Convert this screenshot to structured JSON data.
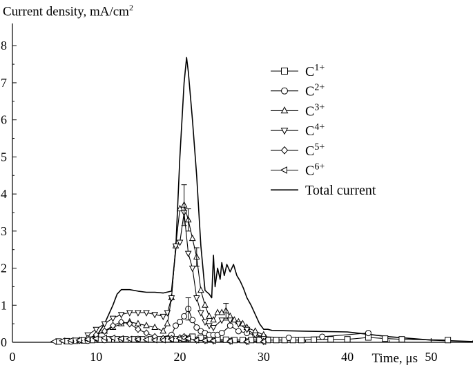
{
  "chart_data": {
    "type": "line",
    "ylabel_main": "Current density, mA/cm",
    "ylabel_sup": "2",
    "xlabel": "Time, μs",
    "xlim": [
      0,
      55
    ],
    "ylim": [
      0,
      8.6
    ],
    "x_ticks": [
      0,
      10,
      20,
      30,
      40,
      50
    ],
    "y_ticks": [
      0,
      1,
      2,
      3,
      4,
      5,
      6,
      7,
      8
    ],
    "legend_position": "top-right",
    "series": [
      {
        "name": "C1+",
        "base": "C",
        "sup": "1+",
        "marker": "square",
        "x": [
          5.5,
          6.5,
          7.5,
          8.5,
          9.5,
          10.5,
          11.5,
          12.5,
          13.5,
          14.5,
          15.5,
          16.5,
          17.5,
          18.5,
          19.5,
          20.5,
          21.5,
          22.5,
          23.5,
          24.5,
          25.5,
          26.5,
          27.5,
          28.5,
          29.5,
          30.5,
          31.5,
          32.5,
          33.5,
          34.5,
          36,
          38,
          40,
          42.5,
          44.5,
          46.5,
          52
        ],
        "values": [
          0.02,
          0.03,
          0.04,
          0.05,
          0.06,
          0.07,
          0.08,
          0.08,
          0.08,
          0.08,
          0.08,
          0.08,
          0.08,
          0.08,
          0.08,
          0.1,
          0.15,
          0.12,
          0.1,
          0.08,
          0.07,
          0.06,
          0.06,
          0.06,
          0.06,
          0.06,
          0.06,
          0.06,
          0.06,
          0.06,
          0.07,
          0.08,
          0.08,
          0.13,
          0.1,
          0.08,
          0.06
        ]
      },
      {
        "name": "C2+",
        "base": "C",
        "sup": "2+",
        "marker": "circle",
        "x": [
          7,
          9,
          11,
          13,
          15,
          17,
          19,
          19.5,
          20,
          20.5,
          21,
          21.5,
          22,
          22.5,
          23,
          23.5,
          24,
          24.5,
          25,
          26,
          27,
          28,
          29,
          30,
          33,
          37,
          42.5
        ],
        "values": [
          0.02,
          0.04,
          0.06,
          0.08,
          0.09,
          0.1,
          0.2,
          0.45,
          0.55,
          0.7,
          0.9,
          0.6,
          0.4,
          0.3,
          0.25,
          0.2,
          0.2,
          0.2,
          0.25,
          0.45,
          0.3,
          0.25,
          0.2,
          0.15,
          0.12,
          0.15,
          0.25
        ]
      },
      {
        "name": "C3+",
        "base": "C",
        "sup": "3+",
        "marker": "triangle-up",
        "x": [
          8,
          9,
          10,
          11,
          12,
          13,
          14,
          15,
          16,
          17,
          18,
          18.5,
          19,
          19.5,
          20,
          20.5,
          21,
          21.5,
          22,
          22.5,
          23,
          23.5,
          24,
          24.5,
          25,
          25.5,
          26,
          26.5,
          27,
          27.5,
          28,
          29,
          30
        ],
        "values": [
          0.05,
          0.1,
          0.2,
          0.3,
          0.4,
          0.5,
          0.55,
          0.5,
          0.45,
          0.4,
          0.3,
          0.5,
          1.2,
          2.6,
          3.6,
          3.7,
          3.3,
          2.8,
          2.3,
          1.4,
          1.0,
          0.7,
          0.6,
          0.8,
          0.8,
          0.85,
          0.7,
          0.6,
          0.55,
          0.5,
          0.4,
          0.3,
          0.2
        ]
      },
      {
        "name": "C4+",
        "base": "C",
        "sup": "4+",
        "marker": "triangle-down",
        "x": [
          9,
          10,
          11,
          12,
          13,
          14,
          15,
          16,
          17,
          18,
          18.5,
          19,
          19.5,
          20,
          20.5,
          21,
          21.5,
          22,
          22.5,
          23,
          23.5,
          24,
          25,
          26,
          27,
          28,
          29,
          30
        ],
        "values": [
          0.2,
          0.35,
          0.5,
          0.65,
          0.75,
          0.8,
          0.8,
          0.8,
          0.75,
          0.7,
          0.8,
          1.2,
          2.6,
          2.7,
          3.5,
          2.4,
          2.0,
          1.2,
          0.8,
          0.55,
          0.45,
          0.4,
          0.6,
          0.6,
          0.5,
          0.35,
          0.2,
          0.1
        ]
      },
      {
        "name": "C5+",
        "base": "C",
        "sup": "5+",
        "marker": "diamond",
        "x": [
          8,
          9,
          10,
          11,
          12,
          13,
          14,
          15,
          16,
          17,
          18,
          19,
          20,
          20.5,
          21,
          22,
          23,
          24,
          26,
          28,
          30
        ],
        "values": [
          0.05,
          0.1,
          0.2,
          0.3,
          0.45,
          0.55,
          0.5,
          0.35,
          0.25,
          0.15,
          0.1,
          0.1,
          0.12,
          0.15,
          0.1,
          0.06,
          0.05,
          0.04,
          0.03,
          0.02,
          0.02
        ]
      },
      {
        "name": "C6+",
        "base": "C",
        "sup": "6+",
        "marker": "triangle-left",
        "x": [
          5,
          6,
          7,
          8,
          9,
          10,
          11,
          12,
          13,
          14,
          15,
          16,
          17,
          18,
          19,
          20,
          20.5,
          21,
          22,
          23,
          24,
          26,
          28,
          30
        ],
        "values": [
          0.02,
          0.04,
          0.05,
          0.06,
          0.08,
          0.1,
          0.12,
          0.12,
          0.1,
          0.09,
          0.08,
          0.07,
          0.06,
          0.06,
          0.08,
          0.1,
          0.12,
          0.1,
          0.06,
          0.05,
          0.04,
          0.03,
          0.02,
          0.02
        ]
      },
      {
        "name": "Total current",
        "marker": "none",
        "x": [
          9,
          10,
          11,
          12,
          12.5,
          13,
          14,
          15,
          16,
          17,
          18,
          19,
          19.5,
          20,
          20.5,
          20.8,
          21,
          21.5,
          22,
          22.5,
          23,
          23.5,
          23.8,
          24,
          24.2,
          24.5,
          24.8,
          25,
          25.3,
          25.6,
          26,
          26.4,
          26.8,
          27.2,
          27.6,
          28,
          28.5,
          29,
          29.5,
          30,
          30.5,
          31,
          35,
          40,
          45,
          50,
          55
        ],
        "values": [
          0.05,
          0.15,
          0.5,
          1.0,
          1.3,
          1.42,
          1.42,
          1.38,
          1.35,
          1.35,
          1.33,
          1.38,
          2.5,
          5.0,
          7.0,
          7.68,
          7.3,
          6.0,
          4.5,
          2.6,
          1.4,
          1.3,
          1.2,
          2.35,
          1.5,
          2.0,
          1.7,
          2.15,
          1.8,
          2.1,
          1.9,
          2.1,
          1.8,
          1.65,
          1.45,
          1.2,
          1.0,
          0.75,
          0.5,
          0.35,
          0.35,
          0.32,
          0.3,
          0.28,
          0.15,
          0.06,
          0.02
        ]
      }
    ],
    "error_bars": [
      {
        "x": 20.5,
        "y": 3.7,
        "err": 0.55
      },
      {
        "x": 21.0,
        "y": 3.3,
        "err": 0.3
      },
      {
        "x": 21.0,
        "y": 0.9,
        "err": 0.3
      },
      {
        "x": 22.0,
        "y": 2.3,
        "err": 0.25
      },
      {
        "x": 25.5,
        "y": 0.85,
        "err": 0.2
      }
    ]
  }
}
